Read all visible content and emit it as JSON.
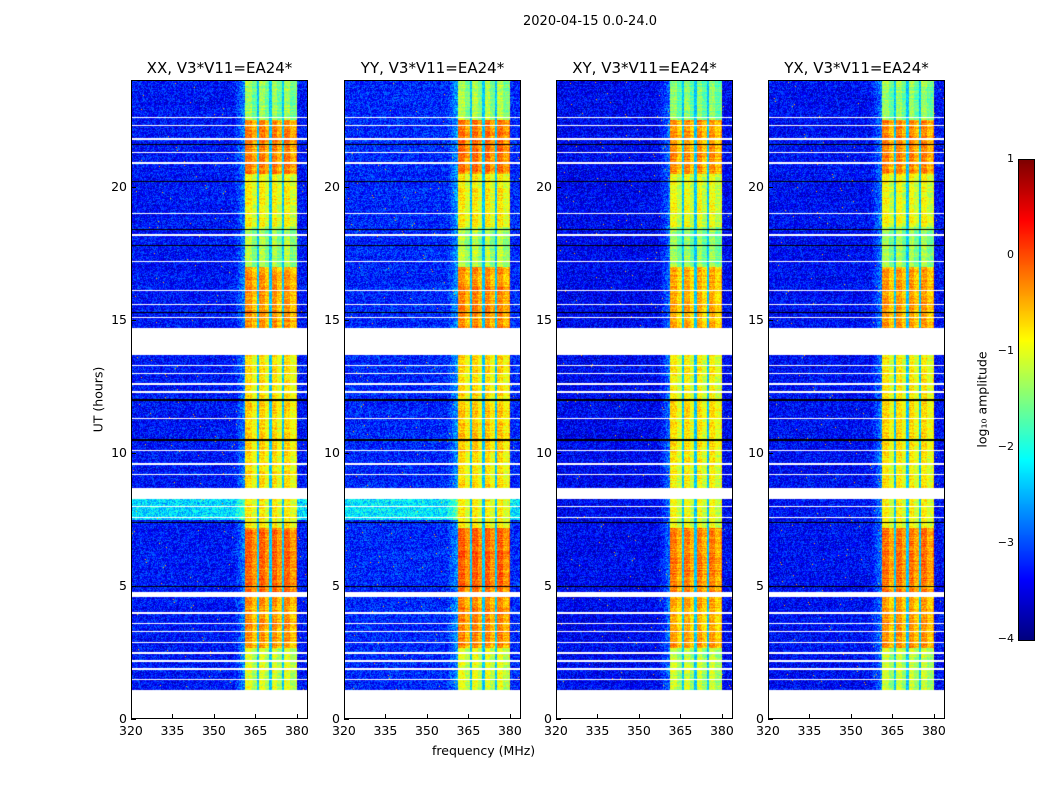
{
  "suptitle": "2020-04-15 0.0-24.0",
  "chart_data": {
    "type": "heatmap",
    "title": "2020-04-15 0.0-24.0",
    "xlabel": "frequency (MHz)",
    "ylabel": "UT (hours)",
    "xlim": [
      320,
      384
    ],
    "ylim": [
      0,
      24
    ],
    "xticks": [
      320,
      335,
      350,
      365,
      380
    ],
    "yticks": [
      0,
      5,
      10,
      15,
      20
    ],
    "colorbar": {
      "label": "log₁₀ amplitude",
      "range": [
        -4,
        1
      ],
      "ticks": [
        1,
        0,
        -1,
        -2,
        -3,
        -4
      ],
      "colormap": "jet"
    },
    "panels": [
      {
        "title": "XX, V3*V11=EA24*",
        "band_offset": 0.0,
        "background": -3.3
      },
      {
        "title": "YY, V3*V11=EA24*",
        "band_offset": 0.05,
        "background": -3.2
      },
      {
        "title": "XY, V3*V11=EA24*",
        "band_offset": -0.1,
        "background": -3.4
      },
      {
        "title": "YX, V3*V11=EA24*",
        "band_offset": -0.05,
        "background": -3.35
      }
    ],
    "band_mhz": [
      361,
      380
    ],
    "band_dips_mhz": [
      365.8,
      370.3,
      374.8
    ],
    "no_data_hours": [
      [
        0,
        1.1
      ],
      [
        4.6,
        4.8
      ],
      [
        8.3,
        8.7
      ],
      [
        13.7,
        14.7
      ]
    ],
    "white_line_hours": [
      1.5,
      1.9,
      2.2,
      2.5,
      2.9,
      3.3,
      3.6,
      4.0,
      7.6,
      8.0,
      9.2,
      9.6,
      10.1,
      11.3,
      12.3,
      12.6,
      13.0,
      13.3,
      15.1,
      15.6,
      16.1,
      17.2,
      18.2,
      19.0,
      20.9,
      21.3,
      21.8,
      22.3,
      22.6
    ],
    "black_line_hours": [
      5.0,
      7.4,
      10.5,
      12.0,
      15.3,
      17.8,
      18.4,
      20.2,
      21.6
    ],
    "band_level_segments": [
      {
        "hours": [
          1.1,
          2.7
        ],
        "log_amplitude": -1.0
      },
      {
        "hours": [
          2.7,
          4.6
        ],
        "log_amplitude": -0.3
      },
      {
        "hours": [
          4.8,
          7.2
        ],
        "log_amplitude": -0.1
      },
      {
        "hours": [
          7.2,
          8.3
        ],
        "log_amplitude": -0.8
      },
      {
        "hours": [
          8.7,
          10.0
        ],
        "log_amplitude": -0.7
      },
      {
        "hours": [
          10.0,
          12.0
        ],
        "log_amplitude": -0.6
      },
      {
        "hours": [
          12.0,
          13.7
        ],
        "log_amplitude": -0.7
      },
      {
        "hours": [
          14.7,
          17.0
        ],
        "log_amplitude": -0.3
      },
      {
        "hours": [
          17.0,
          18.5
        ],
        "log_amplitude": -1.2
      },
      {
        "hours": [
          18.5,
          20.5
        ],
        "log_amplitude": -0.8
      },
      {
        "hours": [
          20.5,
          22.5
        ],
        "log_amplitude": -0.2
      },
      {
        "hours": [
          22.5,
          24.0
        ],
        "log_amplitude": -1.3
      }
    ]
  }
}
